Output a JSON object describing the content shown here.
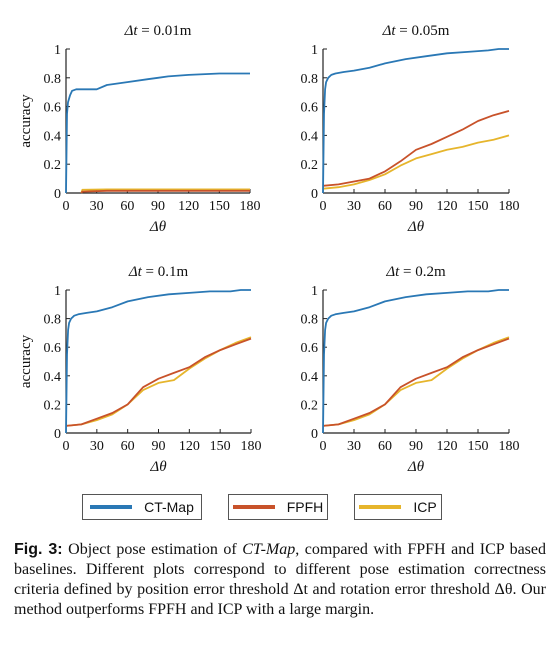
{
  "chart_data": [
    {
      "type": "line",
      "title_sym": "Δt",
      "title_val": " = 0.01m",
      "xlabel": "Δθ",
      "ylabel": "accuracy",
      "xlim": [
        0,
        180
      ],
      "ylim": [
        0,
        1
      ],
      "xticks": [
        "0",
        "30",
        "60",
        "90",
        "120",
        "150",
        "180"
      ],
      "yticks": [
        "0",
        "0.2",
        "0.4",
        "0.6",
        "0.8",
        "1"
      ],
      "series": [
        {
          "name": "CT-Map",
          "color": "#2a78b5",
          "x": [
            0,
            1,
            2,
            4,
            6,
            10,
            20,
            30,
            40,
            60,
            80,
            90,
            100,
            120,
            150,
            180
          ],
          "y": [
            0,
            0.55,
            0.63,
            0.68,
            0.71,
            0.72,
            0.72,
            0.72,
            0.75,
            0.77,
            0.79,
            0.8,
            0.81,
            0.82,
            0.83,
            0.83
          ]
        },
        {
          "name": "FPFH",
          "color": "#c8522a",
          "x": [
            15,
            16,
            40,
            90,
            180
          ],
          "y": [
            0,
            0.01,
            0.015,
            0.015,
            0.015
          ]
        },
        {
          "name": "ICP",
          "color": "#e6b52c",
          "x": [
            15,
            16,
            40,
            90,
            180
          ],
          "y": [
            0,
            0.022,
            0.025,
            0.025,
            0.025
          ]
        }
      ]
    },
    {
      "type": "line",
      "title_sym": "Δt",
      "title_val": " = 0.05m",
      "xlabel": "Δθ",
      "ylabel": "",
      "xlim": [
        0,
        180
      ],
      "ylim": [
        0,
        1
      ],
      "xticks": [
        "0",
        "30",
        "60",
        "90",
        "120",
        "150",
        "180"
      ],
      "yticks": [
        "0",
        "0.2",
        "0.4",
        "0.6",
        "0.8",
        "1"
      ],
      "series": [
        {
          "name": "CT-Map",
          "color": "#2a78b5",
          "x": [
            0,
            1,
            2,
            3,
            5,
            8,
            12,
            20,
            30,
            45,
            60,
            80,
            100,
            120,
            140,
            160,
            170,
            180
          ],
          "y": [
            0,
            0.55,
            0.72,
            0.77,
            0.8,
            0.82,
            0.83,
            0.84,
            0.85,
            0.87,
            0.9,
            0.93,
            0.95,
            0.97,
            0.98,
            0.99,
            1.0,
            1.0
          ]
        },
        {
          "name": "FPFH",
          "color": "#c8522a",
          "x": [
            0,
            15,
            30,
            45,
            60,
            75,
            90,
            105,
            120,
            135,
            150,
            165,
            180
          ],
          "y": [
            0.05,
            0.06,
            0.08,
            0.1,
            0.15,
            0.22,
            0.3,
            0.34,
            0.39,
            0.44,
            0.5,
            0.54,
            0.57
          ]
        },
        {
          "name": "ICP",
          "color": "#e6b52c",
          "x": [
            0,
            15,
            30,
            45,
            60,
            75,
            90,
            105,
            120,
            135,
            150,
            165,
            180
          ],
          "y": [
            0.03,
            0.04,
            0.06,
            0.09,
            0.13,
            0.19,
            0.24,
            0.27,
            0.3,
            0.32,
            0.35,
            0.37,
            0.4
          ]
        }
      ]
    },
    {
      "type": "line",
      "title_sym": "Δt",
      "title_val": " = 0.1m",
      "xlabel": "Δθ",
      "ylabel": "accuracy",
      "xlim": [
        0,
        180
      ],
      "ylim": [
        0,
        1
      ],
      "xticks": [
        "0",
        "30",
        "60",
        "90",
        "120",
        "150",
        "180"
      ],
      "yticks": [
        "0",
        "0.2",
        "0.4",
        "0.6",
        "0.8",
        "1"
      ],
      "series": [
        {
          "name": "CT-Map",
          "color": "#2a78b5",
          "x": [
            0,
            1,
            2,
            3,
            5,
            8,
            12,
            20,
            30,
            45,
            60,
            80,
            100,
            120,
            140,
            160,
            170,
            180
          ],
          "y": [
            0,
            0.55,
            0.72,
            0.77,
            0.8,
            0.82,
            0.83,
            0.84,
            0.85,
            0.88,
            0.92,
            0.95,
            0.97,
            0.98,
            0.99,
            0.99,
            1.0,
            1.0
          ]
        },
        {
          "name": "FPFH",
          "color": "#c8522a",
          "x": [
            0,
            15,
            30,
            45,
            60,
            75,
            90,
            105,
            120,
            135,
            150,
            165,
            180
          ],
          "y": [
            0.05,
            0.06,
            0.1,
            0.14,
            0.2,
            0.32,
            0.38,
            0.42,
            0.46,
            0.53,
            0.58,
            0.62,
            0.66
          ]
        },
        {
          "name": "ICP",
          "color": "#e6b52c",
          "x": [
            0,
            15,
            30,
            45,
            60,
            75,
            90,
            105,
            120,
            135,
            150,
            165,
            180
          ],
          "y": [
            0.05,
            0.06,
            0.09,
            0.13,
            0.2,
            0.3,
            0.35,
            0.37,
            0.45,
            0.52,
            0.58,
            0.63,
            0.67
          ]
        }
      ]
    },
    {
      "type": "line",
      "title_sym": "Δt",
      "title_val": " = 0.2m",
      "xlabel": "Δθ",
      "ylabel": "",
      "xlim": [
        0,
        180
      ],
      "ylim": [
        0,
        1
      ],
      "xticks": [
        "0",
        "30",
        "60",
        "90",
        "120",
        "150",
        "180"
      ],
      "yticks": [
        "0",
        "0.2",
        "0.4",
        "0.6",
        "0.8",
        "1"
      ],
      "series": [
        {
          "name": "CT-Map",
          "color": "#2a78b5",
          "x": [
            0,
            1,
            2,
            3,
            5,
            8,
            12,
            20,
            30,
            45,
            60,
            80,
            100,
            120,
            140,
            160,
            170,
            180
          ],
          "y": [
            0,
            0.55,
            0.72,
            0.77,
            0.8,
            0.82,
            0.83,
            0.84,
            0.85,
            0.88,
            0.92,
            0.95,
            0.97,
            0.98,
            0.99,
            0.99,
            1.0,
            1.0
          ]
        },
        {
          "name": "FPFH",
          "color": "#c8522a",
          "x": [
            0,
            15,
            30,
            45,
            60,
            75,
            90,
            105,
            120,
            135,
            150,
            165,
            180
          ],
          "y": [
            0.05,
            0.06,
            0.1,
            0.14,
            0.2,
            0.32,
            0.38,
            0.42,
            0.46,
            0.53,
            0.58,
            0.62,
            0.66
          ]
        },
        {
          "name": "ICP",
          "color": "#e6b52c",
          "x": [
            0,
            15,
            30,
            45,
            60,
            75,
            90,
            105,
            120,
            135,
            150,
            165,
            180
          ],
          "y": [
            0.05,
            0.06,
            0.09,
            0.13,
            0.2,
            0.3,
            0.35,
            0.37,
            0.45,
            0.52,
            0.58,
            0.63,
            0.67
          ]
        }
      ]
    }
  ],
  "legend": [
    {
      "label": "CT-Map",
      "color": "#2a78b5"
    },
    {
      "label": "FPFH",
      "color": "#c8522a"
    },
    {
      "label": "ICP",
      "color": "#e6b52c"
    }
  ],
  "caption": {
    "label": "Fig. 3:",
    "text_1": " Object pose estimation of ",
    "method": "CT-Map",
    "text_2": ", compared with FPFH and ICP based baselines. Different plots correspond to different pose estimation correctness criteria defined by position error threshold Δt and rotation error threshold Δθ. Our method outperforms FPFH and ICP with a large margin."
  }
}
